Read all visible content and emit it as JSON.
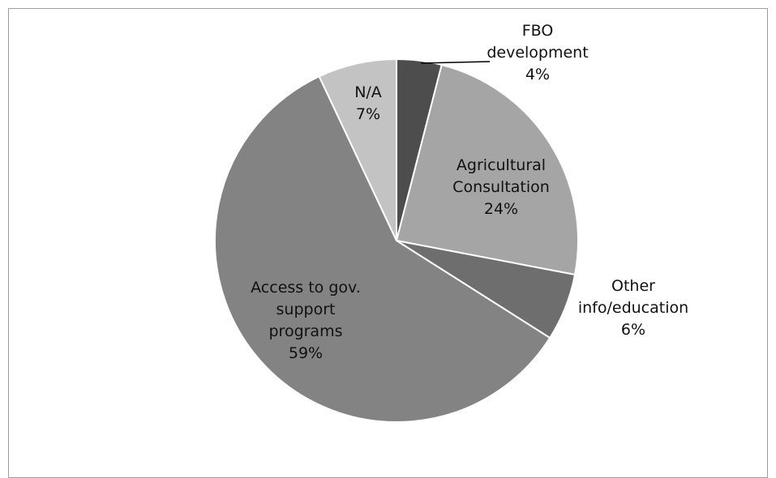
{
  "chart_data": {
    "type": "pie",
    "title": "",
    "slices": [
      {
        "lines": [
          "FBO",
          "development"
        ],
        "pct_label": "4%",
        "value": 4,
        "color": "#4d4d4d"
      },
      {
        "lines": [
          "Agricultural",
          "Consultation"
        ],
        "pct_label": "24%",
        "value": 24,
        "color": "#a5a5a5"
      },
      {
        "lines": [
          "Other",
          "info/education"
        ],
        "pct_label": "6%",
        "value": 6,
        "color": "#6e6e6e"
      },
      {
        "lines": [
          "Access to gov.",
          "support",
          "programs"
        ],
        "pct_label": "59%",
        "value": 59,
        "color": "#838383"
      },
      {
        "lines": [
          "N/A"
        ],
        "pct_label": "7%",
        "value": 7,
        "color": "#c3c3c3"
      }
    ],
    "start_angle": "12 o'clock",
    "direction": "clockwise",
    "legend": "none"
  }
}
